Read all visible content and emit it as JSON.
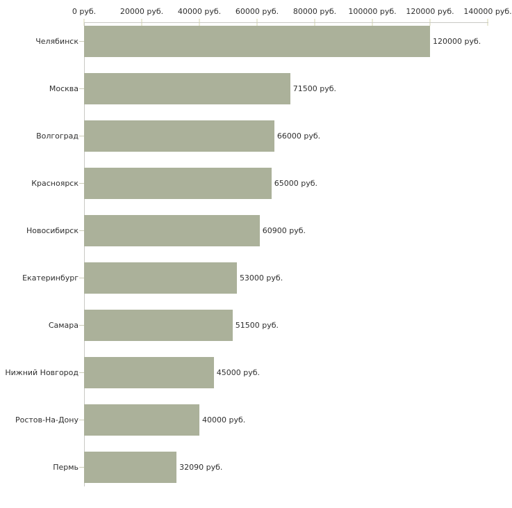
{
  "chart_data": {
    "type": "bar",
    "orientation": "horizontal",
    "title": "",
    "xlabel": "",
    "ylabel": "",
    "xlim": [
      0,
      140000
    ],
    "grid": false,
    "legend": null,
    "categories": [
      "Челябинск",
      "Москва",
      "Волгоград",
      "Красноярск",
      "Новосибирск",
      "Екатеринбург",
      "Самара",
      "Нижний Новгород",
      "Ростов-На-Дону",
      "Пермь"
    ],
    "values": [
      120000,
      71500,
      66000,
      65000,
      60900,
      53000,
      51500,
      45000,
      40000,
      32090
    ],
    "value_labels": [
      "120000 руб.",
      "71500 руб.",
      "66000 руб.",
      "65000 руб.",
      "60900 руб.",
      "53000 руб.",
      "51500 руб.",
      "45000 руб.",
      "40000 руб.",
      "32090 руб."
    ],
    "x_tick_labels": [
      "0 руб.",
      "20000 руб.",
      "40000 руб.",
      "60000 руб.",
      "80000 руб.",
      "100000 руб.",
      "120000 руб.",
      "140000 руб."
    ],
    "colors": {
      "bar": "#abb19a",
      "axis": "#c8c8c4",
      "tick": "#d6d6ae",
      "category_dash": "#ccccb8",
      "text": "#2e2e2e",
      "background": "#ffffff"
    }
  }
}
